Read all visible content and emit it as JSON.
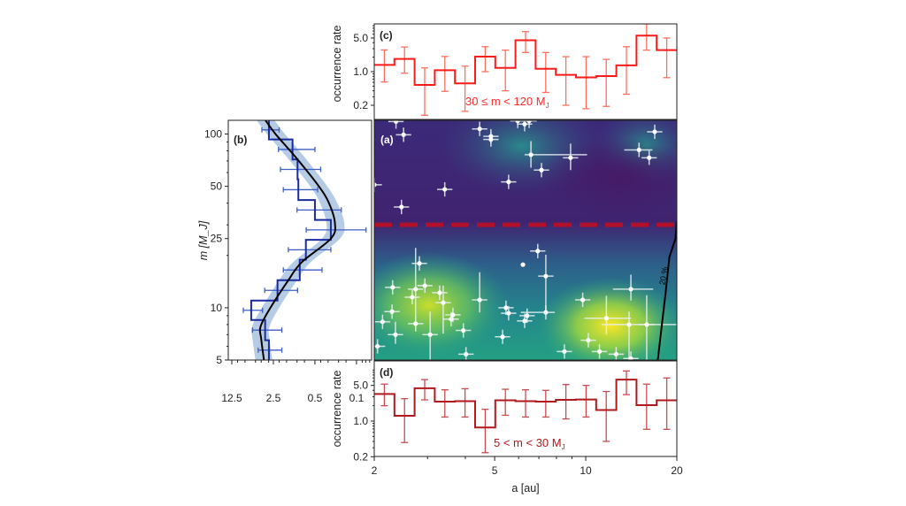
{
  "chart_data": [
    {
      "panel": "(a)",
      "type": "scatter",
      "xlabel": "a [au]",
      "ylabel": "m [M_J]",
      "xscale": "log",
      "yscale": "log",
      "xlim": [
        2,
        20
      ],
      "ylim": [
        5,
        120
      ],
      "xticks": [
        "2",
        "5",
        "10",
        "20"
      ],
      "yticks": [
        "5",
        "10",
        "25",
        "50",
        "100"
      ],
      "background": "density map, viridis colormap",
      "divider": {
        "m": 30,
        "style": "dashed",
        "color": "#b0102a"
      },
      "contour": {
        "label": "20 %",
        "color": "#000000",
        "points": [
          [
            17.3,
            5.0
          ],
          [
            18.4,
            12.6
          ],
          [
            18.9,
            19.6
          ],
          [
            19.8,
            25
          ],
          [
            20,
            31.5
          ]
        ]
      },
      "points": [
        {
          "a": 2.36,
          "m": 118
        },
        {
          "a": 2.5,
          "m": 99
        },
        {
          "a": 4.46,
          "m": 107
        },
        {
          "a": 4.86,
          "m": 97
        },
        {
          "a": 4.86,
          "m": 93
        },
        {
          "a": 5.96,
          "m": 119
        },
        {
          "a": 6.28,
          "m": 114
        },
        {
          "a": 6.5,
          "m": 119
        },
        {
          "a": 6.59,
          "m": 76,
          "a_err": [
            6.28,
            10.1
          ],
          "m_err": [
            64,
            91
          ]
        },
        {
          "a": 8.91,
          "m": 73,
          "m_err": [
            62,
            88
          ]
        },
        {
          "a": 7.14,
          "m": 62
        },
        {
          "a": 5.56,
          "m": 53
        },
        {
          "a": 3.42,
          "m": 48
        },
        {
          "a": 2.0,
          "m": 51
        },
        {
          "a": 2.46,
          "m": 38
        },
        {
          "a": 16.9,
          "m": 103
        },
        {
          "a": 15.0,
          "m": 81,
          "a_err": [
            13.4,
            16.6
          ]
        },
        {
          "a": 16.2,
          "m": 73
        },
        {
          "a": 2.82,
          "m": 18.0
        },
        {
          "a": 2.3,
          "m": 13.1
        },
        {
          "a": 2.94,
          "m": 13.4
        },
        {
          "a": 2.74,
          "m": 12.8,
          "m_err": [
            7.3,
            22.1
          ]
        },
        {
          "a": 2.67,
          "m": 11.5
        },
        {
          "a": 3.29,
          "m": 12.2
        },
        {
          "a": 3.38,
          "m": 10.7,
          "m_err": [
            7.1,
            13.4
          ]
        },
        {
          "a": 2.29,
          "m": 9.5
        },
        {
          "a": 2.13,
          "m": 8.3
        },
        {
          "a": 2.35,
          "m": 7.0,
          "m_err": [
            6.2,
            8.3
          ]
        },
        {
          "a": 2.74,
          "m": 8.1
        },
        {
          "a": 3.06,
          "m": 7.0,
          "m_err": [
            5.0,
            9.5
          ]
        },
        {
          "a": 3.64,
          "m": 9.1
        },
        {
          "a": 3.59,
          "m": 8.6
        },
        {
          "a": 3.94,
          "m": 7.4
        },
        {
          "a": 4.02,
          "m": 5.4
        },
        {
          "a": 2.05,
          "m": 6.0
        },
        {
          "a": 4.46,
          "m": 11.1,
          "m_err": [
            9.4,
            16.0
          ]
        },
        {
          "a": 5.45,
          "m": 10.0
        },
        {
          "a": 5.56,
          "m": 9.3
        },
        {
          "a": 5.31,
          "m": 6.8
        },
        {
          "a": 6.2,
          "m": 17.7,
          "no_err": true
        },
        {
          "a": 6.94,
          "m": 21.2
        },
        {
          "a": 7.38,
          "m": 15.2,
          "m_err": [
            9.4,
            20.2
          ]
        },
        {
          "a": 7.38,
          "m": 9.4,
          "a_err": [
            6.1,
            7.9
          ]
        },
        {
          "a": 6.4,
          "m": 9.0
        },
        {
          "a": 6.28,
          "m": 8.4
        },
        {
          "a": 9.77,
          "m": 11.1
        },
        {
          "a": 14.1,
          "m": 12.8,
          "a_err": [
            12.3,
            16.7
          ],
          "m_err": [
            11,
            15.5
          ]
        },
        {
          "a": 11.7,
          "m": 8.7,
          "a_err": [
            9.9,
            14.1
          ],
          "m_err": [
            7.0,
            11.7
          ]
        },
        {
          "a": 13.9,
          "m": 8.0,
          "a_err": [
            11.3,
            20
          ],
          "m_err": [
            5.0,
            9.5
          ]
        },
        {
          "a": 15.9,
          "m": 8.0,
          "m_err": [
            5.0,
            11.8
          ]
        },
        {
          "a": 10.2,
          "m": 6.5
        },
        {
          "a": 8.5,
          "m": 5.6
        },
        {
          "a": 11.1,
          "m": 5.6
        },
        {
          "a": 12.6,
          "m": 5.4
        },
        {
          "a": 14.1,
          "m": 5.1
        }
      ]
    },
    {
      "panel": "(b)",
      "type": "line",
      "orientation": "horizontal histogram",
      "ylabel": "m [M_J]",
      "xscale": "log",
      "xreversed": true,
      "xlim": [
        14.3,
        0.056
      ],
      "xticks": [
        "12.5",
        "2.5",
        "0.5",
        "0.1"
      ],
      "yticks": [
        "5",
        "10",
        "25",
        "50",
        "100"
      ],
      "bin_edges_m": [
        5,
        6.5,
        8.5,
        11.0,
        14.4,
        18.9,
        24.6,
        32,
        41.7,
        54.8,
        71.4,
        93,
        120
      ],
      "values": [
        2.97,
        3.44,
        5.9,
        2.13,
        0.9,
        0.71,
        0.27,
        0.5,
        0.95,
        0.98,
        1.19,
        2.97
      ],
      "err_low": [
        1.8,
        1.8,
        3.8,
        0.98,
        0.38,
        0.27,
        0.069,
        0.18,
        0.45,
        0.4,
        0.5,
        2.0
      ],
      "err_high": [
        4.5,
        5.6,
        8.0,
        3.5,
        1.7,
        1.4,
        0.7,
        1.0,
        1.7,
        1.9,
        2.05,
        3.9
      ],
      "fit": {
        "m": [
          5,
          6.6,
          7.8,
          10,
          14.4,
          18.3,
          25,
          30.5,
          40,
          50,
          72,
          100,
          120
        ],
        "rate": [
          3.6,
          4.0,
          4.1,
          2.8,
          1.4,
          0.83,
          0.27,
          0.23,
          0.29,
          0.43,
          1.0,
          2.3,
          3.4
        ],
        "band_lower": [
          2.6,
          2.9,
          2.9,
          2.0,
          1.0,
          0.59,
          0.19,
          0.16,
          0.21,
          0.31,
          0.71,
          1.6,
          2.4
        ],
        "band_upper": [
          5.0,
          5.6,
          5.7,
          3.9,
          2.0,
          1.16,
          0.38,
          0.32,
          0.41,
          0.6,
          1.4,
          3.2,
          4.8
        ]
      },
      "colors": {
        "step": "#1a2aa0",
        "err": "#3f5fc8",
        "fit": "#000000",
        "band": "#a8c3df"
      }
    },
    {
      "panel": "(c)",
      "type": "line",
      "style": "step histogram",
      "ylabel": "occurrence rate",
      "annotation": "30 ≤ m < 120 M",
      "annotation_sub": "J",
      "yscale": "log",
      "ylim": [
        0.1,
        9.8
      ],
      "yticks": [
        "0.2",
        "1.0",
        "5.0"
      ],
      "x_range": [
        2,
        20
      ],
      "n_bins": 15,
      "values": [
        1.38,
        1.84,
        0.53,
        1.07,
        0.57,
        2.05,
        1.2,
        4.5,
        1.15,
        0.86,
        0.76,
        0.81,
        1.35,
        5.6,
        2.8
      ],
      "err_low": [
        0.61,
        0.93,
        0.124,
        0.39,
        0.15,
        1.0,
        0.4,
        2.5,
        0.37,
        0.2,
        0.17,
        0.19,
        0.34,
        2.8,
        0.75
      ],
      "err_high": [
        2.83,
        3.25,
        1.2,
        2.07,
        1.3,
        3.3,
        2.8,
        6.8,
        2.5,
        2.05,
        2.05,
        1.8,
        3.3,
        9.8,
        5.0
      ],
      "colors": {
        "step": "#ff1a1a",
        "err": "#ff6f60"
      }
    },
    {
      "panel": "(d)",
      "type": "line",
      "style": "step histogram",
      "ylabel": "occurrence rate",
      "xlabel": "a [au]",
      "annotation": "5 < m < 30 M",
      "annotation_sub": "J",
      "yscale": "log",
      "ylim": [
        0.2,
        15
      ],
      "yticks": [
        "0.2",
        "1.0",
        "5.0"
      ],
      "xticks": [
        "2",
        "5",
        "10",
        "20"
      ],
      "x_range": [
        2,
        20
      ],
      "n_bins": 15,
      "values": [
        3.4,
        1.27,
        4.4,
        2.4,
        2.45,
        0.75,
        2.55,
        2.45,
        2.4,
        2.6,
        2.65,
        1.65,
        6.5,
        2.05,
        2.55
      ],
      "err_low": [
        2.0,
        0.38,
        2.6,
        1.2,
        1.2,
        0.24,
        1.3,
        1.2,
        1.2,
        1.1,
        1.2,
        0.4,
        3.3,
        0.69,
        0.69
      ],
      "err_high": [
        5.3,
        2.75,
        6.5,
        4.1,
        4.3,
        1.7,
        4.2,
        4.1,
        4.0,
        5.2,
        5.0,
        3.8,
        9.6,
        5.3,
        7.0
      ],
      "colors": {
        "step": "#b01a1e",
        "err": "#cc4a50"
      }
    }
  ]
}
